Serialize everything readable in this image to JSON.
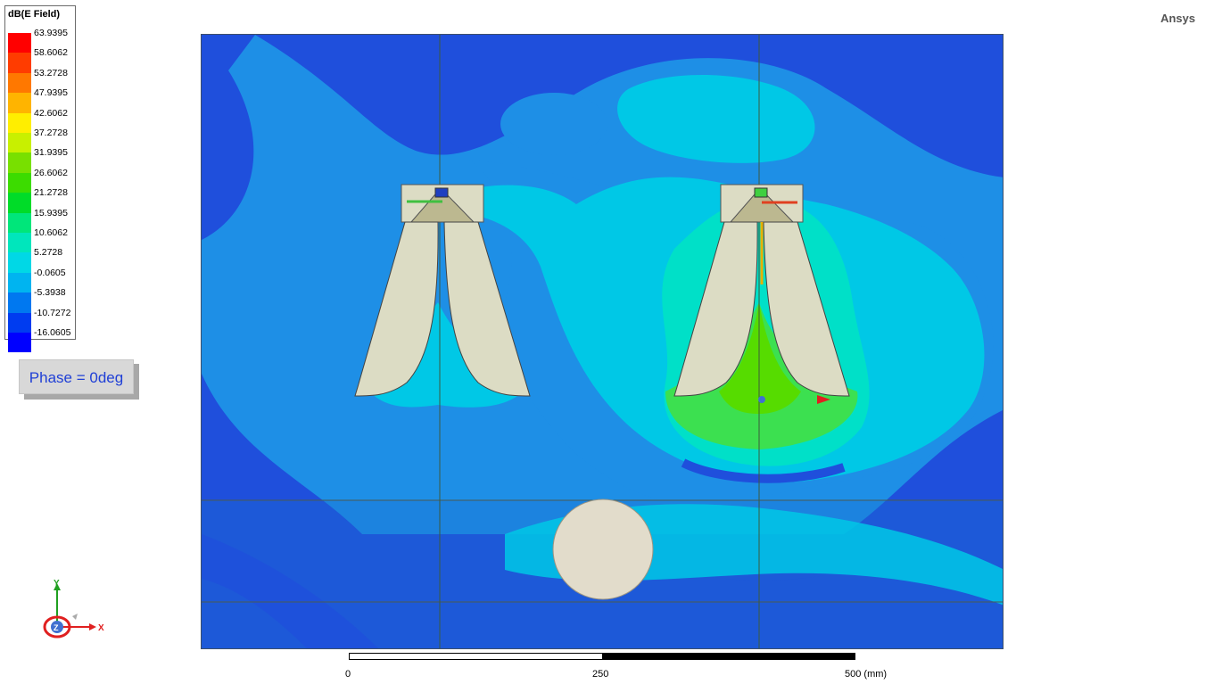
{
  "legend": {
    "title": "dB(E Field)",
    "entries": [
      {
        "label": "63.9395",
        "color": "#ff0000"
      },
      {
        "label": "58.6062",
        "color": "#ff3c00"
      },
      {
        "label": "53.2728",
        "color": "#ff7800"
      },
      {
        "label": "47.9395",
        "color": "#ffb400"
      },
      {
        "label": "42.6062",
        "color": "#ffee00"
      },
      {
        "label": "37.2728",
        "color": "#c8f000"
      },
      {
        "label": "31.9395",
        "color": "#78e000"
      },
      {
        "label": "26.6062",
        "color": "#3cdc00"
      },
      {
        "label": "21.2728",
        "color": "#00dc28"
      },
      {
        "label": "15.9395",
        "color": "#00e67a"
      },
      {
        "label": "10.6062",
        "color": "#00e6bc"
      },
      {
        "label": "5.2728",
        "color": "#00d8e6"
      },
      {
        "label": "-0.0605",
        "color": "#00b4f0"
      },
      {
        "label": "-5.3938",
        "color": "#0078f0"
      },
      {
        "label": "-10.7272",
        "color": "#003cf0"
      },
      {
        "label": "-16.0605",
        "color": "#0000ff"
      }
    ]
  },
  "phase": {
    "label": "Phase = 0deg"
  },
  "brand": {
    "name": "Ansys"
  },
  "scale": {
    "start": "0",
    "mid": "250",
    "end": "500 (mm)"
  },
  "triad": {
    "x_label": "X",
    "y_label": "Y",
    "z_label": "Z"
  },
  "colors": {
    "field_dark_blue": "#1f4fdc",
    "field_mid_blue": "#1e8fe6",
    "field_cyan": "#00c8e6",
    "field_aqua": "#00e0c8",
    "field_green": "#3ce050",
    "antenna_fill": "#dcdcc4",
    "sphere_fill": "#e2dccb"
  }
}
